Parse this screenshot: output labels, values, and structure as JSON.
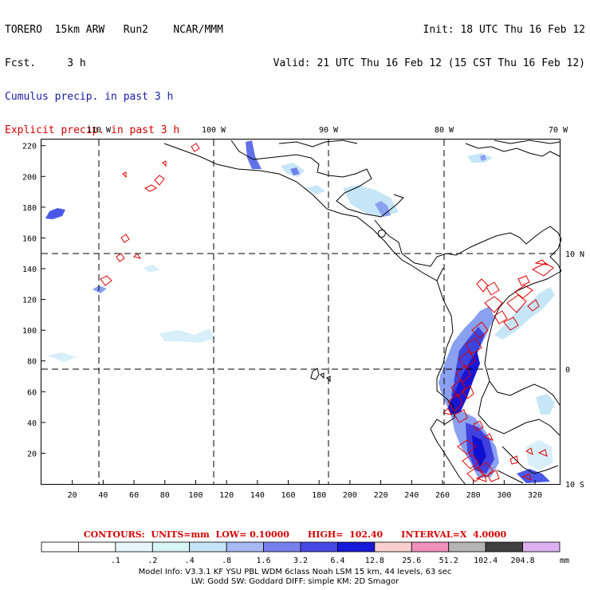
{
  "header": {
    "line1_left": "TORERO  15km ARW   Run2    NCAR/MMM",
    "line2_left": "Fcst.     3 h",
    "line1_right": "Init: 18 UTC Thu 16 Feb 12",
    "line2_right": "Valid: 21 UTC Thu 16 Feb 12 (15 CST Thu 16 Feb 12)",
    "cumulus_label": "Cumulus precip. in past 3 h",
    "explicit_label": "Explicit precip. in past 3 h"
  },
  "map": {
    "lon_labels": [
      "110 W",
      "100 W",
      "90 W",
      "80 W",
      "70 W"
    ],
    "lat_labels": [
      "10 N",
      "0",
      "10 S"
    ],
    "y_ticks": [
      "220",
      "200",
      "180",
      "160",
      "140",
      "120",
      "100",
      "80",
      "60",
      "40",
      "20"
    ],
    "x_ticks": [
      "20",
      "40",
      "60",
      "80",
      "100",
      "120",
      "140",
      "160",
      "180",
      "200",
      "220",
      "240",
      "260",
      "280",
      "300",
      "320"
    ],
    "colors": {
      "land_outline": "#000000",
      "explicit_contour": "#e00000",
      "precip_light": "#c6e6f8",
      "precip_mid": "#8aa0f0",
      "precip_heavy": "#4040e0",
      "precip_max": "#1010d0"
    }
  },
  "contours_line": "CONTOURS:  UNITS=mm  LOW= 0.10000      HIGH=  102.40      INTERVAL=X  4.0000",
  "colorbar": {
    "colors": [
      "#ffffff",
      "#ffffff",
      "#e8f6fc",
      "#d8f4f6",
      "#c6e6f8",
      "#a8b8f4",
      "#7880ee",
      "#4848e6",
      "#1818d8",
      "#f8d0d0",
      "#f090b8",
      "#b4b4b4",
      "#404040",
      "#dcb0f0"
    ],
    "labels": [
      ".1",
      ".2",
      ".4",
      ".8",
      "1.6",
      "3.2",
      "6.4",
      "12.8",
      "25.6",
      "51.2",
      "102.4",
      "204.8"
    ],
    "unit": "mm"
  },
  "footer": {
    "line1": "Model Info: V3.3.1    KF      YSU PBL   WDM 6class   Noah LSM   15 km,    44 levels,    63 sec",
    "line2": "LW: Godd SW: Goddard DIFF: simple KM: 2D Smagor"
  }
}
